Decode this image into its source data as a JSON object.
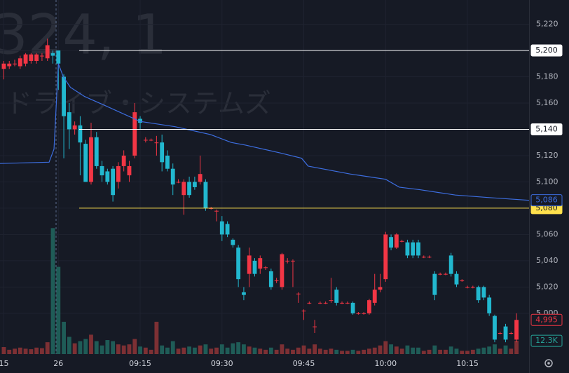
{
  "chart_data": {
    "type": "candlestick",
    "watermark": {
      "symbol": "324, 1",
      "name": "ドライブ・システムズ"
    },
    "xlim": [
      -10.7,
      86.3
    ],
    "ylim": [
      4969,
      5238.4
    ],
    "vlim": [
      0,
      140000
    ],
    "xticks": [
      {
        "value": -10,
        "label": "15"
      },
      {
        "value": 0,
        "label": "26"
      },
      {
        "value": 15,
        "label": "09:15"
      },
      {
        "value": 30,
        "label": "09:30"
      },
      {
        "value": 45,
        "label": "09:45"
      },
      {
        "value": 60,
        "label": "10:00"
      },
      {
        "value": 75,
        "label": "10:15"
      }
    ],
    "yticks": [
      {
        "value": 5000,
        "label": "5,000"
      },
      {
        "value": 5020,
        "label": "5,020"
      },
      {
        "value": 5040,
        "label": "5,040"
      },
      {
        "value": 5060,
        "label": "5,060"
      },
      {
        "value": 5080,
        "label": "5,080"
      },
      {
        "value": 5100,
        "label": "5,100"
      },
      {
        "value": 5120,
        "label": "5,120"
      },
      {
        "value": 5140,
        "label": "5,140"
      },
      {
        "value": 5160,
        "label": "5,160"
      },
      {
        "value": 5180,
        "label": "5,180"
      },
      {
        "value": 5200,
        "label": "5,200"
      },
      {
        "value": 5220,
        "label": "5,220"
      }
    ],
    "up_color": "#f23645",
    "down_color": "#22b8cf",
    "up_volume_color": "#7d3034",
    "down_volume_color": "#1f5c57",
    "x": [
      -10,
      -9,
      -8,
      -7,
      -6,
      -5,
      -4,
      -3,
      -2,
      -1,
      0,
      1,
      2,
      3,
      4,
      5,
      6,
      7,
      8,
      9,
      10,
      11,
      12,
      13,
      14,
      15,
      16,
      17,
      18,
      19,
      20,
      21,
      22,
      23,
      24,
      25,
      26,
      27,
      28,
      29,
      30,
      31,
      32,
      33,
      34,
      35,
      36,
      37,
      38,
      39,
      40,
      41,
      42,
      43,
      44,
      45,
      46,
      47,
      48,
      49,
      50,
      51,
      52,
      53,
      54,
      55,
      56,
      57,
      58,
      59,
      60,
      61,
      62,
      63,
      64,
      65,
      66,
      67,
      68,
      69,
      70,
      71,
      72,
      73,
      74,
      75,
      76,
      77,
      78,
      79,
      80,
      81,
      82,
      83,
      84
    ],
    "open": [
      5186,
      5188,
      5190,
      5188,
      5190,
      5192,
      5192,
      5196,
      5194,
      5198,
      5200,
      5180,
      5153,
      5140,
      5143,
      5129,
      5100,
      5134,
      5112,
      5108,
      5110,
      5100,
      5112,
      5105,
      5120,
      5148,
      5132,
      5132,
      5130,
      5130,
      5120,
      5110,
      5100,
      5090,
      5100,
      5100,
      5100,
      5100,
      5080,
      5078,
      5070,
      5068,
      5056,
      5050,
      5016,
      5030,
      5040,
      5034,
      5035,
      5032,
      5025,
      5020,
      5040,
      5040,
      5015,
      5002,
      5008,
      4990,
      5008,
      5008,
      5010,
      5018,
      5008,
      5008,
      5008,
      5000,
      5000,
      5000,
      5008,
      5018,
      5026,
      5058,
      5050,
      5055,
      5054,
      5054,
      5054,
      5043,
      5043,
      5030,
      5030,
      5030,
      5044,
      5030,
      5025,
      5020,
      5020,
      5020,
      5020,
      5012,
      4998,
      4985,
      4990,
      4985,
      4980
    ],
    "high": [
      5192,
      5192,
      5193,
      5196,
      5198,
      5198,
      5198,
      5198,
      5209,
      5200,
      5200,
      5182,
      5160,
      5146,
      5150,
      5132,
      5145,
      5138,
      5116,
      5110,
      5112,
      5115,
      5124,
      5116,
      5160,
      5150,
      5134,
      5133,
      5135,
      5136,
      5124,
      5114,
      5102,
      5102,
      5104,
      5104,
      5120,
      5102,
      5081,
      5079,
      5074,
      5070,
      5057,
      5052,
      5020,
      5050,
      5042,
      5044,
      5036,
      5034,
      5027,
      5046,
      5042,
      5041,
      5016,
      5003,
      5009,
      4995,
      5009,
      5009,
      5027,
      5020,
      5009,
      5009,
      5009,
      5001,
      5001,
      5011,
      5030,
      5030,
      5062,
      5060,
      5061,
      5056,
      5056,
      5056,
      5056,
      5044,
      5044,
      5032,
      5031,
      5031,
      5046,
      5032,
      5026,
      5021,
      5021,
      5021,
      5021,
      5014,
      4999,
      4986,
      4992,
      4986,
      5000
    ],
    "low": [
      5178,
      5186,
      5188,
      5186,
      5188,
      5190,
      5190,
      5192,
      5192,
      5190,
      5170,
      5118,
      5125,
      5136,
      5105,
      5100,
      5098,
      5110,
      5100,
      5098,
      5085,
      5095,
      5108,
      5100,
      5118,
      5140,
      5130,
      5131,
      5120,
      5108,
      5108,
      5090,
      5099,
      5075,
      5088,
      5094,
      5098,
      5078,
      5079,
      5070,
      5055,
      5058,
      5050,
      5020,
      5010,
      5020,
      5028,
      5030,
      5033,
      5018,
      5023,
      5018,
      5038,
      5020,
      5008,
      4995,
      5007,
      4985,
      5007,
      5007,
      5008,
      5006,
      5007,
      5007,
      4999,
      4999,
      4999,
      4999,
      5006,
      5016,
      5024,
      5048,
      5049,
      5054,
      5042,
      5042,
      5042,
      5042,
      5042,
      5010,
      5029,
      5029,
      5028,
      5020,
      5024,
      5019,
      5019,
      5008,
      5010,
      4998,
      4978,
      4984,
      4978,
      4984,
      4978
    ],
    "close": [
      5190,
      5190,
      5190,
      5194,
      5197,
      5197,
      5197,
      5196,
      5204,
      5196,
      5190,
      5150,
      5140,
      5143,
      5130,
      5100,
      5134,
      5112,
      5105,
      5100,
      5090,
      5112,
      5120,
      5112,
      5153,
      5145,
      5132,
      5132,
      5130,
      5115,
      5110,
      5098,
      5100,
      5100,
      5090,
      5096,
      5106,
      5080,
      5080,
      5078,
      5060,
      5060,
      5052,
      5026,
      5014,
      5044,
      5030,
      5042,
      5035,
      5020,
      5025,
      5045,
      5040,
      5040,
      5015,
      5002,
      5008,
      4990,
      5008,
      5008,
      5010,
      5008,
      5008,
      5008,
      5000,
      5000,
      5000,
      5010,
      5018,
      5020,
      5060,
      5050,
      5060,
      5055,
      5044,
      5044,
      5044,
      5043,
      5043,
      5014,
      5030,
      5030,
      5030,
      5022,
      5025,
      5020,
      5020,
      5010,
      5012,
      5000,
      4980,
      4985,
      4980,
      4985,
      4995
    ],
    "volume": [
      6500,
      4000,
      5000,
      6000,
      5000,
      4500,
      6000,
      5500,
      11000,
      117000,
      81000,
      30000,
      16000,
      10000,
      12000,
      14000,
      18000,
      12000,
      8000,
      13000,
      12000,
      9000,
      8000,
      9000,
      14000,
      7000,
      6000,
      4000,
      30000,
      8000,
      6000,
      12000,
      5000,
      6000,
      7000,
      6000,
      8000,
      9000,
      5000,
      6000,
      9000,
      6000,
      10000,
      11000,
      9000,
      7000,
      6000,
      5000,
      4000,
      6000,
      4000,
      9000,
      5000,
      4000,
      6000,
      8000,
      5000,
      9000,
      5000,
      4000,
      5000,
      4000,
      3000,
      3000,
      4000,
      3000,
      4000,
      5000,
      6000,
      8000,
      12000,
      9000,
      7000,
      5000,
      8000,
      6000,
      6000,
      3000,
      4000,
      8000,
      4000,
      4000,
      7000,
      5000,
      3000,
      3000,
      4000,
      5000,
      6000,
      7000,
      9000,
      5000,
      8000,
      5000,
      12300
    ],
    "vwap": {
      "color": "#3d6ee0",
      "x": [
        -10.7,
        -1.7,
        -0.8,
        0,
        0.9,
        2.2,
        4.8,
        8.6,
        15,
        21.4,
        27.9,
        31.7,
        34.3,
        40.7,
        44.6,
        45.8,
        53.5,
        60,
        62.5,
        66.4,
        72.8,
        79.2,
        86.3
      ],
      "values": [
        5114,
        5115,
        5125,
        5190,
        5180,
        5172,
        5165,
        5158,
        5146,
        5142,
        5136,
        5130,
        5128,
        5122,
        5118,
        5112,
        5106,
        5102,
        5096,
        5094,
        5090,
        5088,
        5086
      ],
      "last": {
        "value": 5086,
        "label": "5,086"
      }
    },
    "price_lines": [
      {
        "value": 5200,
        "label": "5,200",
        "color": "#ffffff"
      },
      {
        "value": 5140,
        "label": "5,140",
        "color": "#ffffff"
      },
      {
        "value": 5080,
        "label": "5,080",
        "color": "#ffe14d"
      }
    ],
    "last_price": {
      "value": 4995,
      "label": "4,995"
    },
    "last_volume": {
      "value": 12300,
      "label": "12.3K"
    }
  }
}
